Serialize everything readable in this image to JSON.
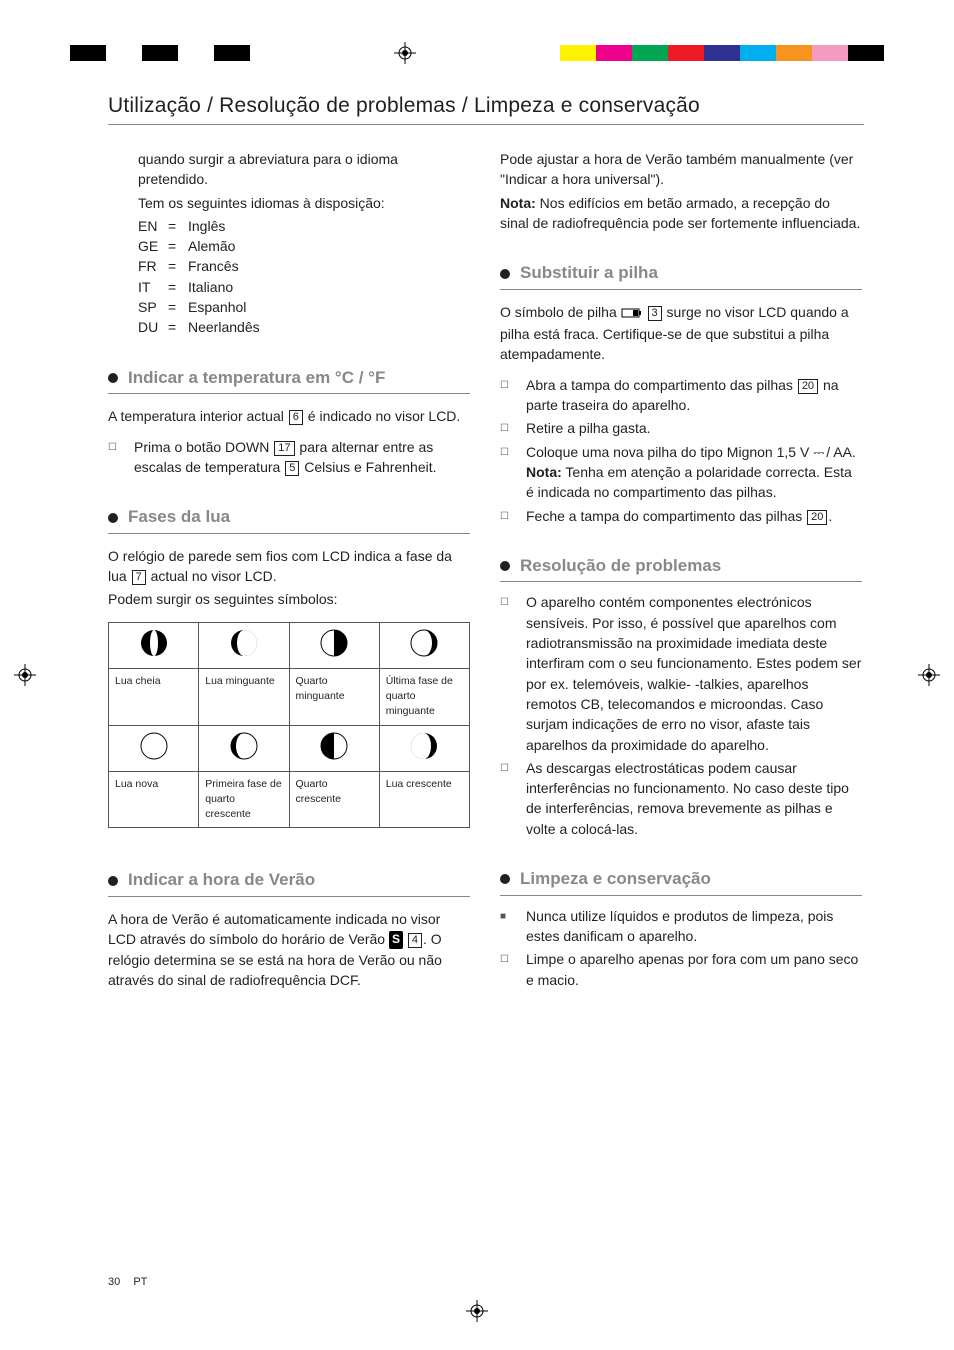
{
  "reg_colors_left": [
    "#000000",
    "#ffffff",
    "#000000",
    "#ffffff",
    "#000000"
  ],
  "reg_colors_right": [
    "#fff200",
    "#ec008c",
    "#00a651",
    "#ed1c24",
    "#2e3192",
    "#00aeef",
    "#f7941d",
    "#f49ac1",
    "#000000"
  ],
  "header": "Utilização / Resolução de problemas / Limpeza e conservação",
  "left": {
    "intro1": "quando surgir a abreviatura para o idioma pretendido.",
    "intro2": "Tem os seguintes idiomas à disposição:",
    "langs": [
      {
        "c": "EN",
        "n": "Inglês"
      },
      {
        "c": "GE",
        "n": "Alemão"
      },
      {
        "c": "FR",
        "n": "Francês"
      },
      {
        "c": "IT",
        "n": "Italiano"
      },
      {
        "c": "SP",
        "n": "Espanhol"
      },
      {
        "c": "DU",
        "n": "Neerlandês"
      }
    ],
    "sec_temp": "Indicar a temperatura em  °C / °F",
    "temp_p1a": "A temperatura interior actual ",
    "temp_ref1": "6",
    "temp_p1b": " é indicado no visor LCD.",
    "temp_b1a": "Prima o botão DOWN ",
    "temp_ref2": "17",
    "temp_b1b": " para alternar entre as escalas de temperatura ",
    "temp_ref3": "5",
    "temp_b1c": " Celsius e Fahrenheit.",
    "sec_moon": "Fases da lua",
    "moon_p1a": "O relógio de parede sem fios com LCD indica a fase da lua ",
    "moon_ref1": "7",
    "moon_p1b": " actual no visor LCD.",
    "moon_p2": "Podem surgir os seguintes símbolos:",
    "moon_labels": [
      "Lua cheia",
      "Lua minguante",
      "Quarto minguante",
      "Última fase de quarto minguante",
      "Lua nova",
      "Primeira fase de quarto crescente",
      "Quarto crescente",
      "Lua crescente"
    ],
    "sec_summer": "Indicar a hora de Verão",
    "summer_p1a": "A hora de Verão é automaticamente indicada no visor LCD através do símbolo do horário de Verão ",
    "summer_s": "S",
    "summer_ref1": "4",
    "summer_p1b": ". O relógio determina se se está na hora de Verão ou não através do sinal de radiofrequência DCF."
  },
  "right": {
    "intro1": "Pode ajustar a hora de Verão também manualmente (ver \"Indicar a hora universal\").",
    "nota_lbl": "Nota:",
    "nota1": " Nos edifícios em betão armado, a recepção do sinal de radiofrequência pode ser fortemente influenciada.",
    "sec_batt": "Substituir a pilha",
    "batt_p1a": "O símbolo de pilha ",
    "batt_ref1": "3",
    "batt_p1b": " surge no visor LCD quando a pilha está fraca. Certifique-se de que substitui a pilha atempadamente.",
    "batt_b1a": "Abra a tampa do compartimento das pilhas ",
    "batt_b1_ref": "20",
    "batt_b1b": " na parte traseira do aparelho.",
    "batt_b2": "Retire a pilha gasta.",
    "batt_b3a": "Coloque uma nova pilha do tipo Mignon 1,5 V",
    "batt_b3_dc": "⎓",
    "batt_b3b": " / AA.",
    "batt_b3_nota": " Tenha em atenção a polaridade correcta. Esta é indicada no compartimento das pilhas.",
    "batt_b4a": "Feche a tampa do compartimento das pilhas ",
    "batt_b4_ref": "20",
    "batt_b4b": ".",
    "sec_prob": "Resolução de problemas",
    "prob_b1": "O aparelho contém componentes electrónicos sensíveis. Por isso, é possível que aparelhos com radiotransmissão na proximidade imediata deste interfiram com o seu funcionamento. Estes podem ser por ex. telemóveis, walkie- -talkies, aparelhos remotos CB, telecomandos e microondas. Caso surjam indicações de erro no visor, afaste tais aparelhos da proximidade do aparelho.",
    "prob_b2": "As descargas electrostáticas podem causar interferências no funcionamento. No caso deste tipo de interferências, remova brevemente as pilhas e volte a colocá-las.",
    "sec_clean": "Limpeza e conservação",
    "clean_b1": "Nunca utilize líquidos e produtos de limpeza, pois estes danificam o aparelho.",
    "clean_b2": "Limpe o aparelho apenas por fora com um pano seco e macio."
  },
  "footer": {
    "page": "30",
    "lang": "PT"
  }
}
